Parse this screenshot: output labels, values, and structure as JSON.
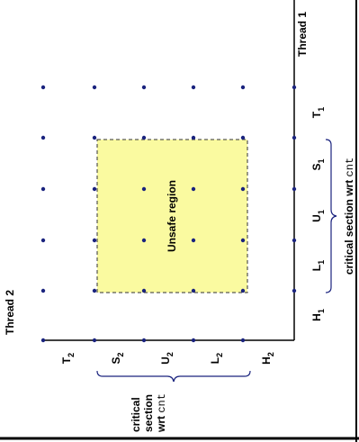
{
  "axes": {
    "thread1": "Thread 1",
    "thread2": "Thread 2"
  },
  "region": "Unsafe region",
  "thread1_steps": [
    {
      "letter": "H",
      "sub": "1"
    },
    {
      "letter": "L",
      "sub": "1"
    },
    {
      "letter": "U",
      "sub": "1"
    },
    {
      "letter": "S",
      "sub": "1"
    },
    {
      "letter": "T",
      "sub": "1"
    }
  ],
  "thread2_steps": [
    {
      "letter": "H",
      "sub": "2"
    },
    {
      "letter": "L",
      "sub": "2"
    },
    {
      "letter": "U",
      "sub": "2"
    },
    {
      "letter": "S",
      "sub": "2"
    },
    {
      "letter": "T",
      "sub": "2"
    }
  ],
  "thread1_critical": {
    "text": "critical section wrt ",
    "code": "cnt"
  },
  "thread2_critical": {
    "lines": [
      "critical",
      "section",
      "wrt "
    ],
    "code": "cnt"
  }
}
